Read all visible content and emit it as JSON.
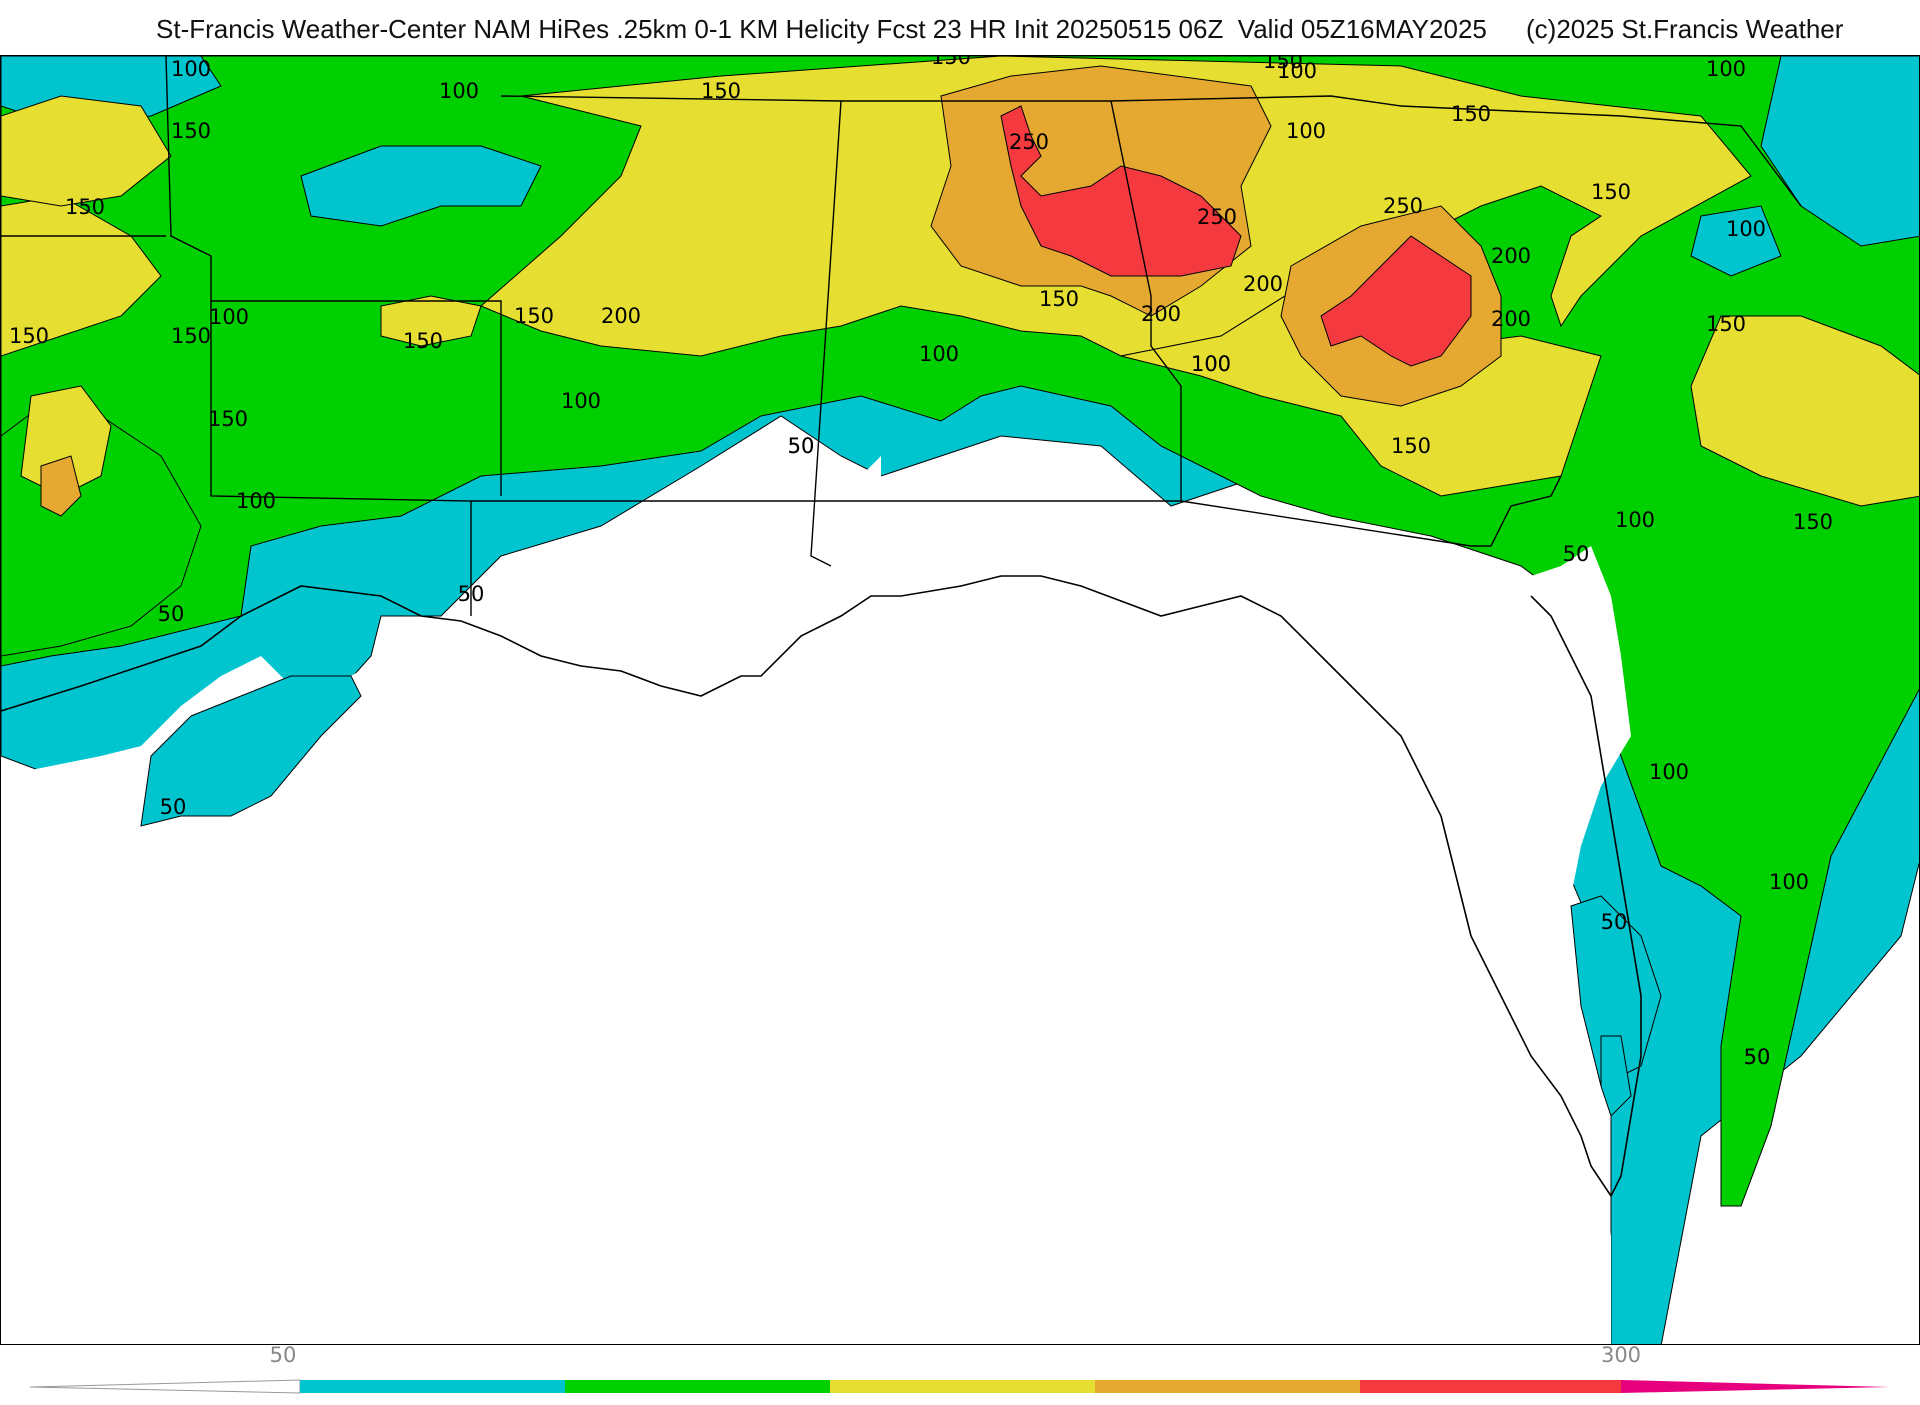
{
  "header": {
    "title": "St-Francis Weather-Center NAM HiRes .25km 0-1 KM Helicity Fcst 23 HR Init 20250515 06Z  Valid 05Z16MAY2025",
    "copyright": "(c)2025 St.Francis Weather"
  },
  "colors": {
    "c50_100": "#00c5cf",
    "c100_150": "#00d000",
    "c150_200": "#e6df32",
    "c200_250": "#e5a830",
    "c250_300": "#f4393f",
    "c300_plus": "#e6007e",
    "land": "#ffffff",
    "lines": "#000000"
  },
  "contour_labels": [
    {
      "text": "100"
    },
    {
      "text": "100"
    },
    {
      "text": "150"
    },
    {
      "text": "150"
    },
    {
      "text": "150"
    },
    {
      "text": "150"
    },
    {
      "text": "100"
    },
    {
      "text": "150"
    },
    {
      "text": "150"
    },
    {
      "text": "100"
    },
    {
      "text": "150"
    },
    {
      "text": "100"
    },
    {
      "text": "50"
    },
    {
      "text": "50"
    },
    {
      "text": "50"
    },
    {
      "text": "50"
    },
    {
      "text": "150"
    },
    {
      "text": "200"
    },
    {
      "text": "250"
    },
    {
      "text": "250"
    },
    {
      "text": "150"
    },
    {
      "text": "200"
    },
    {
      "text": "150"
    },
    {
      "text": "100"
    },
    {
      "text": "100"
    },
    {
      "text": "200"
    },
    {
      "text": "250"
    },
    {
      "text": "200"
    },
    {
      "text": "200"
    },
    {
      "text": "150"
    },
    {
      "text": "100"
    },
    {
      "text": "150"
    },
    {
      "text": "100"
    },
    {
      "text": "150"
    },
    {
      "text": "50"
    },
    {
      "text": "100"
    },
    {
      "text": "150"
    },
    {
      "text": "150"
    },
    {
      "text": "100"
    },
    {
      "text": "50"
    },
    {
      "text": "100"
    },
    {
      "text": "100"
    },
    {
      "text": "50"
    },
    {
      "text": "50"
    },
    {
      "text": "100"
    },
    {
      "text": "150"
    },
    {
      "text": "100"
    },
    {
      "text": "50"
    }
  ],
  "colorbar": {
    "tick_labels": [
      "50",
      "300"
    ]
  }
}
